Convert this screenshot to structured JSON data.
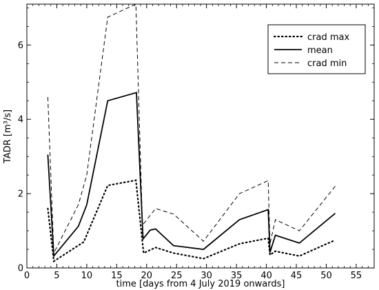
{
  "chart_data": {
    "type": "line",
    "title": "",
    "xlabel": "time [days from 4 July 2019 onwards]",
    "ylabel": "TADR [m³/s]",
    "xlim": [
      0,
      58
    ],
    "ylim": [
      0,
      7.1
    ],
    "x_ticks": [
      "0",
      "5",
      "10",
      "15",
      "20",
      "25",
      "30",
      "35",
      "40",
      "45",
      "50",
      "55"
    ],
    "y_ticks": [
      "0",
      "2",
      "4",
      "6"
    ],
    "grid": false,
    "legend_position": "top-right",
    "series": [
      {
        "name": "crad max",
        "line_style": "dotted",
        "color": "#000000",
        "x": [
          3.5,
          4.5,
          9.5,
          13.5,
          18.2,
          19.5,
          21.5,
          24.5,
          29.5,
          35.5,
          40.3,
          40.6,
          41.5,
          45.5,
          51.5
        ],
        "y": [
          1.6,
          0.18,
          0.7,
          2.22,
          2.36,
          0.4,
          0.55,
          0.4,
          0.25,
          0.65,
          0.8,
          0.35,
          0.45,
          0.32,
          0.75
        ]
      },
      {
        "name": "mean",
        "line_style": "solid",
        "color": "#000000",
        "x": [
          3.5,
          4.5,
          8.6,
          10.0,
          13.5,
          18.3,
          19.4,
          20.6,
          21.5,
          24.5,
          29.5,
          35.5,
          40.3,
          40.6,
          41.5,
          45.5,
          51.5
        ],
        "y": [
          3.05,
          0.32,
          1.12,
          1.7,
          4.5,
          4.72,
          0.78,
          1.02,
          1.05,
          0.6,
          0.5,
          1.3,
          1.57,
          0.42,
          0.88,
          0.67,
          1.47
        ]
      },
      {
        "name": "crad min",
        "line_style": "dashed",
        "color": "#000000",
        "x": [
          3.5,
          4.5,
          8.6,
          10.0,
          13.5,
          18.2,
          19.3,
          21.5,
          24.5,
          29.5,
          35.5,
          40.3,
          40.6,
          41.5,
          45.5,
          51.5
        ],
        "y": [
          4.6,
          0.4,
          1.7,
          2.5,
          6.75,
          7.1,
          1.15,
          1.6,
          1.45,
          0.72,
          2.0,
          2.35,
          0.65,
          1.3,
          1.0,
          2.2
        ]
      }
    ]
  }
}
